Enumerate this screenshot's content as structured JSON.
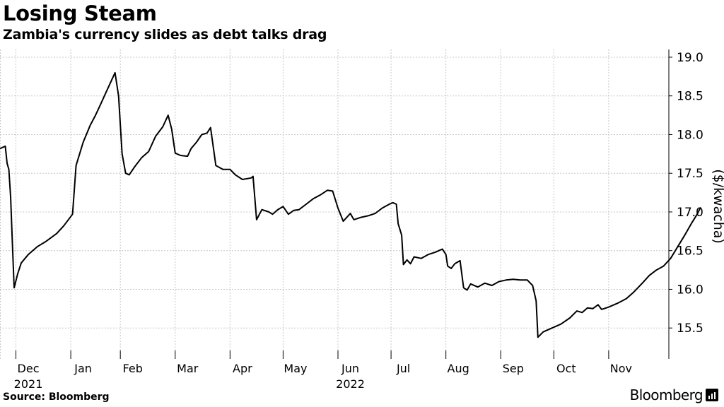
{
  "header": {
    "title": "Losing Steam",
    "subtitle": "Zambia's currency slides as debt talks drag"
  },
  "footer": {
    "source": "Source: Bloomberg",
    "brand": "Bloomberg",
    "brand_icon": "bloomberg-terminal-icon"
  },
  "chart_data": {
    "type": "line",
    "title": "Losing Steam",
    "subtitle": "Zambia's currency slides as debt talks drag",
    "xlabel": "",
    "ylabel": "($/kwacha)",
    "ylim": [
      15.1,
      19.1
    ],
    "yticks": [
      15.5,
      16.0,
      16.5,
      17.0,
      17.5,
      18.0,
      18.5,
      19.0
    ],
    "ytick_labels": [
      "15.5",
      "16.0",
      "16.5",
      "17.0",
      "17.5",
      "18.0",
      "18.5",
      "19.0"
    ],
    "y_axis_position": "right",
    "grid": true,
    "line_color": "#000000",
    "xlim": [
      "2021-11-22",
      "2022-12-05"
    ],
    "month_ticks": [
      {
        "label": "Dec",
        "year": "2021",
        "date": "2021-12-08"
      },
      {
        "label": "Jan",
        "date": "2022-01-08"
      },
      {
        "label": "Feb",
        "date": "2022-02-05"
      },
      {
        "label": "Mar",
        "date": "2022-03-08"
      },
      {
        "label": "Apr",
        "date": "2022-04-08"
      },
      {
        "label": "May",
        "date": "2022-05-08"
      },
      {
        "label": "Jun",
        "year": "2022",
        "date": "2022-06-08"
      },
      {
        "label": "Jul",
        "date": "2022-07-08"
      },
      {
        "label": "Aug",
        "date": "2022-08-08"
      },
      {
        "label": "Sep",
        "date": "2022-09-08"
      },
      {
        "label": "Oct",
        "date": "2022-10-08"
      },
      {
        "label": "Nov",
        "date": "2022-11-08"
      }
    ],
    "separator_dates": [
      "2021-12-01",
      "2022-01-01",
      "2022-01-29",
      "2022-03-01",
      "2022-04-01",
      "2022-05-01",
      "2022-06-01",
      "2022-07-01",
      "2022-08-01",
      "2022-09-01",
      "2022-10-01",
      "2022-11-01"
    ],
    "series": [
      {
        "values": [
          [
            "2021-11-22",
            17.82
          ],
          [
            "2021-11-25",
            17.85
          ],
          [
            "2021-11-26",
            17.63
          ],
          [
            "2021-11-27",
            17.55
          ],
          [
            "2021-11-28",
            17.2
          ],
          [
            "2021-11-29",
            16.6
          ],
          [
            "2021-11-30",
            16.02
          ],
          [
            "2021-12-02",
            16.2
          ],
          [
            "2021-12-04",
            16.34
          ],
          [
            "2021-12-08",
            16.45
          ],
          [
            "2021-12-13",
            16.55
          ],
          [
            "2021-12-18",
            16.62
          ],
          [
            "2021-12-24",
            16.72
          ],
          [
            "2021-12-28",
            16.82
          ],
          [
            "2022-01-02",
            16.97
          ],
          [
            "2022-01-04",
            17.6
          ],
          [
            "2022-01-08",
            17.9
          ],
          [
            "2022-01-12",
            18.12
          ],
          [
            "2022-01-15",
            18.25
          ],
          [
            "2022-01-18",
            18.4
          ],
          [
            "2022-01-21",
            18.55
          ],
          [
            "2022-01-24",
            18.7
          ],
          [
            "2022-01-26",
            18.8
          ],
          [
            "2022-01-28",
            18.5
          ],
          [
            "2022-01-30",
            17.75
          ],
          [
            "2022-02-01",
            17.5
          ],
          [
            "2022-02-03",
            17.48
          ],
          [
            "2022-02-06",
            17.58
          ],
          [
            "2022-02-10",
            17.7
          ],
          [
            "2022-02-14",
            17.78
          ],
          [
            "2022-02-18",
            17.98
          ],
          [
            "2022-02-22",
            18.1
          ],
          [
            "2022-02-25",
            18.25
          ],
          [
            "2022-02-27",
            18.07
          ],
          [
            "2022-03-01",
            17.76
          ],
          [
            "2022-03-04",
            17.73
          ],
          [
            "2022-03-08",
            17.72
          ],
          [
            "2022-03-10",
            17.82
          ],
          [
            "2022-03-13",
            17.9
          ],
          [
            "2022-03-16",
            18.0
          ],
          [
            "2022-03-19",
            18.02
          ],
          [
            "2022-03-21",
            18.09
          ],
          [
            "2022-03-24",
            17.6
          ],
          [
            "2022-03-28",
            17.55
          ],
          [
            "2022-04-01",
            17.55
          ],
          [
            "2022-04-04",
            17.48
          ],
          [
            "2022-04-08",
            17.42
          ],
          [
            "2022-04-13",
            17.44
          ],
          [
            "2022-04-14",
            17.46
          ],
          [
            "2022-04-16",
            16.9
          ],
          [
            "2022-04-19",
            17.03
          ],
          [
            "2022-04-23",
            17.0
          ],
          [
            "2022-04-25",
            16.97
          ],
          [
            "2022-04-28",
            17.03
          ],
          [
            "2022-05-01",
            17.07
          ],
          [
            "2022-05-04",
            16.97
          ],
          [
            "2022-05-07",
            17.02
          ],
          [
            "2022-05-10",
            17.03
          ],
          [
            "2022-05-14",
            17.1
          ],
          [
            "2022-05-18",
            17.17
          ],
          [
            "2022-05-22",
            17.22
          ],
          [
            "2022-05-26",
            17.28
          ],
          [
            "2022-05-29",
            17.27
          ],
          [
            "2022-06-01",
            17.05
          ],
          [
            "2022-06-04",
            16.88
          ],
          [
            "2022-06-08",
            16.98
          ],
          [
            "2022-06-10",
            16.9
          ],
          [
            "2022-06-14",
            16.93
          ],
          [
            "2022-06-18",
            16.95
          ],
          [
            "2022-06-22",
            16.98
          ],
          [
            "2022-06-26",
            17.05
          ],
          [
            "2022-06-30",
            17.1
          ],
          [
            "2022-07-02",
            17.12
          ],
          [
            "2022-07-04",
            17.1
          ],
          [
            "2022-07-05",
            16.85
          ],
          [
            "2022-07-07",
            16.7
          ],
          [
            "2022-07-08",
            16.32
          ],
          [
            "2022-07-10",
            16.38
          ],
          [
            "2022-07-12",
            16.33
          ],
          [
            "2022-07-14",
            16.42
          ],
          [
            "2022-07-18",
            16.4
          ],
          [
            "2022-07-22",
            16.45
          ],
          [
            "2022-07-26",
            16.48
          ],
          [
            "2022-07-30",
            16.52
          ],
          [
            "2022-08-01",
            16.45
          ],
          [
            "2022-08-02",
            16.3
          ],
          [
            "2022-08-04",
            16.27
          ],
          [
            "2022-08-06",
            16.33
          ],
          [
            "2022-08-09",
            16.37
          ],
          [
            "2022-08-11",
            16.02
          ],
          [
            "2022-08-13",
            15.99
          ],
          [
            "2022-08-15",
            16.07
          ],
          [
            "2022-08-19",
            16.03
          ],
          [
            "2022-08-23",
            16.08
          ],
          [
            "2022-08-27",
            16.05
          ],
          [
            "2022-08-31",
            16.1
          ],
          [
            "2022-09-04",
            16.12
          ],
          [
            "2022-09-08",
            16.13
          ],
          [
            "2022-09-12",
            16.12
          ],
          [
            "2022-09-16",
            16.12
          ],
          [
            "2022-09-19",
            16.05
          ],
          [
            "2022-09-21",
            15.85
          ],
          [
            "2022-09-22",
            15.38
          ],
          [
            "2022-09-25",
            15.45
          ],
          [
            "2022-09-30",
            15.5
          ],
          [
            "2022-10-05",
            15.55
          ],
          [
            "2022-10-10",
            15.63
          ],
          [
            "2022-10-14",
            15.72
          ],
          [
            "2022-10-17",
            15.7
          ],
          [
            "2022-10-20",
            15.76
          ],
          [
            "2022-10-23",
            15.75
          ],
          [
            "2022-10-26",
            15.8
          ],
          [
            "2022-10-28",
            15.74
          ],
          [
            "2022-11-01",
            15.77
          ],
          [
            "2022-11-06",
            15.82
          ],
          [
            "2022-11-11",
            15.88
          ],
          [
            "2022-11-15",
            15.96
          ],
          [
            "2022-11-20",
            16.08
          ],
          [
            "2022-11-24",
            16.18
          ],
          [
            "2022-11-28",
            16.25
          ],
          [
            "2022-12-02",
            16.3
          ],
          [
            "2022-12-06",
            16.4
          ],
          [
            "2022-12-10",
            16.55
          ],
          [
            "2022-12-14",
            16.7
          ],
          [
            "2022-12-18",
            16.86
          ],
          [
            "2022-12-21",
            16.97
          ],
          [
            "2022-12-23",
            17.06
          ]
        ]
      }
    ]
  }
}
